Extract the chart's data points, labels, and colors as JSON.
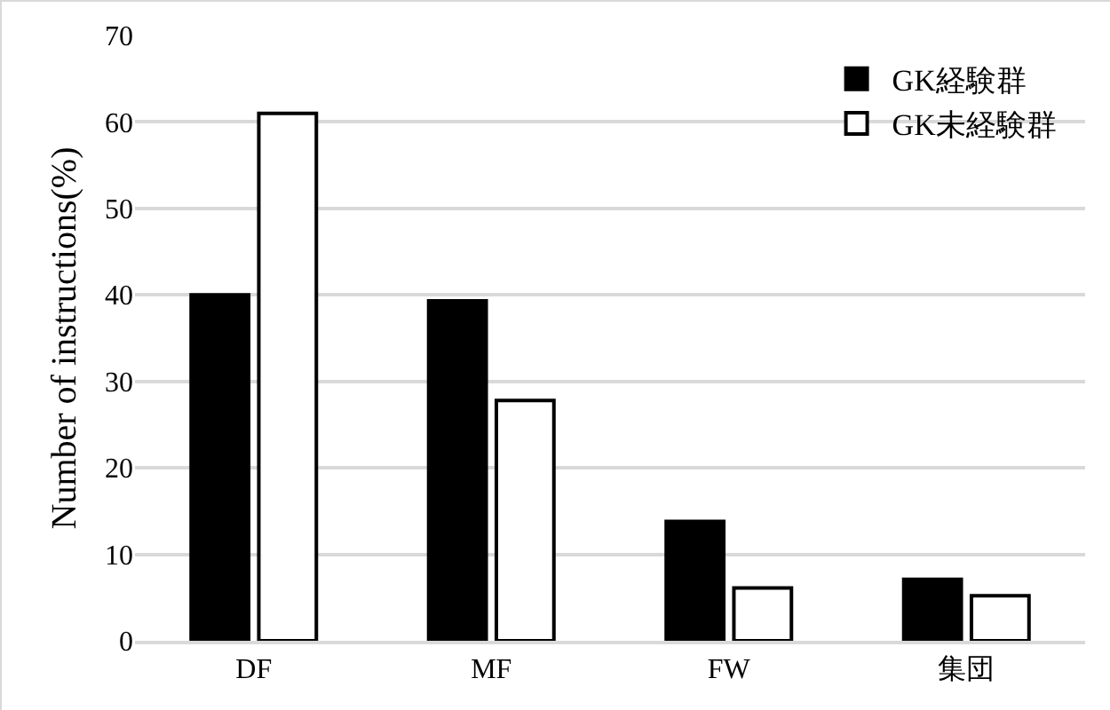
{
  "chart_data": {
    "type": "bar",
    "ylabel": "Number of instructions(%)",
    "categories": [
      "DF",
      "MF",
      "FW",
      "集団"
    ],
    "series": [
      {
        "name": "GK経験群",
        "color": "#000000",
        "values": [
          40,
          39.3,
          13.8,
          7.1
        ]
      },
      {
        "name": "GK未経験群",
        "color": "#ffffff",
        "values": [
          61,
          27.8,
          6.1,
          5.2
        ]
      }
    ],
    "ylim": [
      0,
      70
    ],
    "yticks": [
      0,
      10,
      20,
      30,
      40,
      50,
      60,
      70
    ],
    "grid": "y",
    "legend": "top right"
  }
}
